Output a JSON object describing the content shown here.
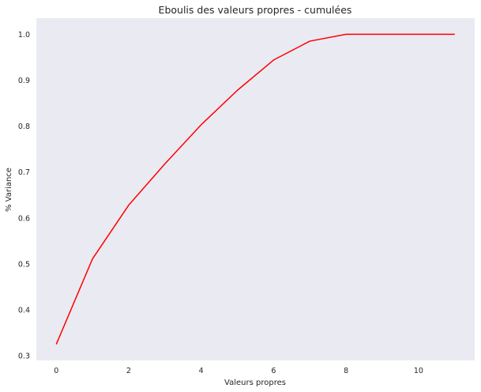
{
  "chart_data": {
    "type": "line",
    "title": "Eboulis des valeurs propres - cumulées",
    "xlabel": "Valeurs propres",
    "ylabel": "% Variance",
    "xlim": [
      -0.55,
      11.55
    ],
    "ylim": [
      0.29,
      1.035
    ],
    "xticks": [
      0,
      2,
      4,
      6,
      8,
      10
    ],
    "yticks": [
      0.3,
      0.4,
      0.5,
      0.6,
      0.7,
      0.8,
      0.9,
      1.0
    ],
    "ytick_labels": [
      "0.3",
      "0.4",
      "0.5",
      "0.6",
      "0.7",
      "0.8",
      "0.9",
      "1.0"
    ],
    "grid": false,
    "background_color": "#eaeaf2",
    "series": [
      {
        "color": "#ff0000",
        "x": [
          0,
          1,
          2,
          3,
          4,
          5,
          6,
          7,
          8,
          9,
          10,
          11
        ],
        "y": [
          0.325,
          0.511,
          0.628,
          0.718,
          0.803,
          0.878,
          0.944,
          0.985,
          1.0,
          1.0,
          1.0,
          1.0
        ]
      }
    ]
  }
}
